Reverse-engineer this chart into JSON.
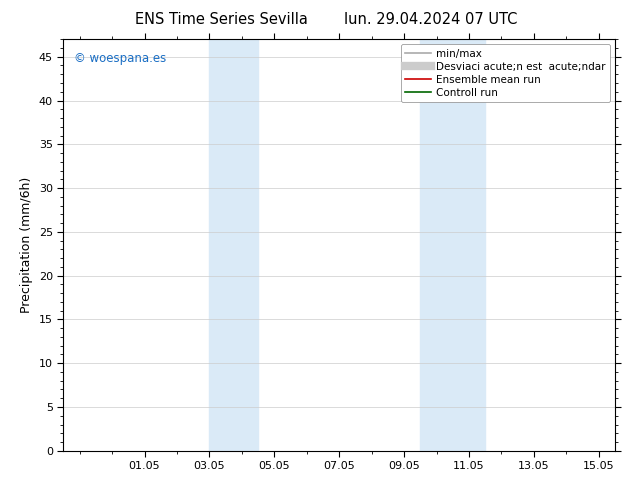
{
  "title_left": "ENS Time Series Sevilla",
  "title_right": "lun. 29.04.2024 07 UTC",
  "ylabel": "Precipitation (mm/6h)",
  "ylim": [
    0,
    47
  ],
  "yticks": [
    0,
    5,
    10,
    15,
    20,
    25,
    30,
    35,
    40,
    45
  ],
  "xlim_start": -0.5,
  "xlim_end": 16.5,
  "xtick_positions": [
    2,
    4,
    6,
    8,
    10,
    12,
    14,
    16
  ],
  "xtick_labels": [
    "01.05",
    "03.05",
    "05.05",
    "07.05",
    "09.05",
    "11.05",
    "13.05",
    "15.05"
  ],
  "shade_regions": [
    {
      "xmin": 4.0,
      "xmax": 5.5,
      "color": "#daeaf7"
    },
    {
      "xmin": 10.5,
      "xmax": 12.5,
      "color": "#daeaf7"
    }
  ],
  "watermark_text": "© woespana.es",
  "watermark_color": "#1a6ec4",
  "legend_entries": [
    {
      "label": "min/max",
      "color": "#aaaaaa",
      "lw": 1.2,
      "ls": "-"
    },
    {
      "label": "Desviaci acute;n est  acute;ndar",
      "color": "#cccccc",
      "lw": 6,
      "ls": "-"
    },
    {
      "label": "Ensemble mean run",
      "color": "#cc0000",
      "lw": 1.2,
      "ls": "-"
    },
    {
      "label": "Controll run",
      "color": "#006600",
      "lw": 1.2,
      "ls": "-"
    }
  ],
  "bg_color": "#ffffff",
  "plot_bg_color": "#ffffff",
  "grid_color": "#cccccc",
  "border_color": "#000000",
  "title_fontsize": 10.5,
  "axis_label_fontsize": 9,
  "tick_fontsize": 8,
  "legend_fontsize": 7.5
}
